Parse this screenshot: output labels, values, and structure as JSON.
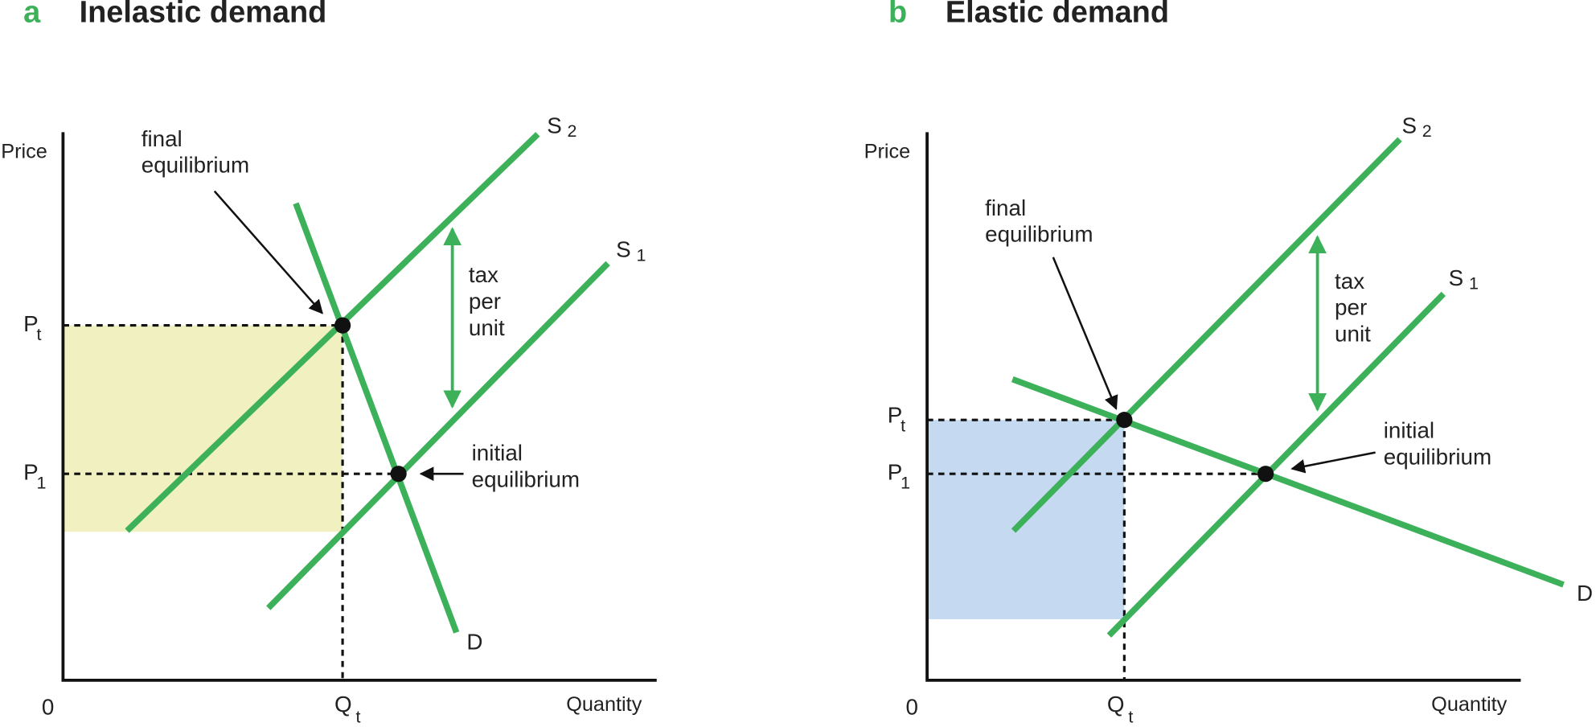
{
  "panels": [
    {
      "letter": "a",
      "title": "Inelastic demand",
      "y_axis_label": "Price",
      "x_axis_label": "Quantity",
      "origin": "0",
      "price_labels": [
        {
          "main": "P",
          "sub": "t"
        },
        {
          "main": "P",
          "sub": "1"
        }
      ],
      "quantity_label": {
        "main": "Q",
        "sub": "t"
      },
      "curves": [
        {
          "main": "S",
          "sub": "2"
        },
        {
          "main": "S",
          "sub": "1"
        },
        {
          "main": "D"
        }
      ],
      "final_label": [
        "final",
        "equilibrium"
      ],
      "initial_label": [
        "initial",
        "equilibrium"
      ],
      "tax_label": [
        "tax",
        "per",
        "unit"
      ]
    },
    {
      "letter": "b",
      "title": "Elastic demand",
      "y_axis_label": "Price",
      "x_axis_label": "Quantity",
      "origin": "0",
      "price_labels": [
        {
          "main": "P",
          "sub": "t"
        },
        {
          "main": "P",
          "sub": "1"
        }
      ],
      "quantity_label": {
        "main": "Q",
        "sub": "t"
      },
      "curves": [
        {
          "main": "S",
          "sub": "2"
        },
        {
          "main": "S",
          "sub": "1"
        },
        {
          "main": "D"
        }
      ],
      "final_label": [
        "final",
        "equilibrium"
      ],
      "initial_label": [
        "initial",
        "equilibrium"
      ],
      "tax_label": [
        "tax",
        "per",
        "unit"
      ]
    }
  ]
}
